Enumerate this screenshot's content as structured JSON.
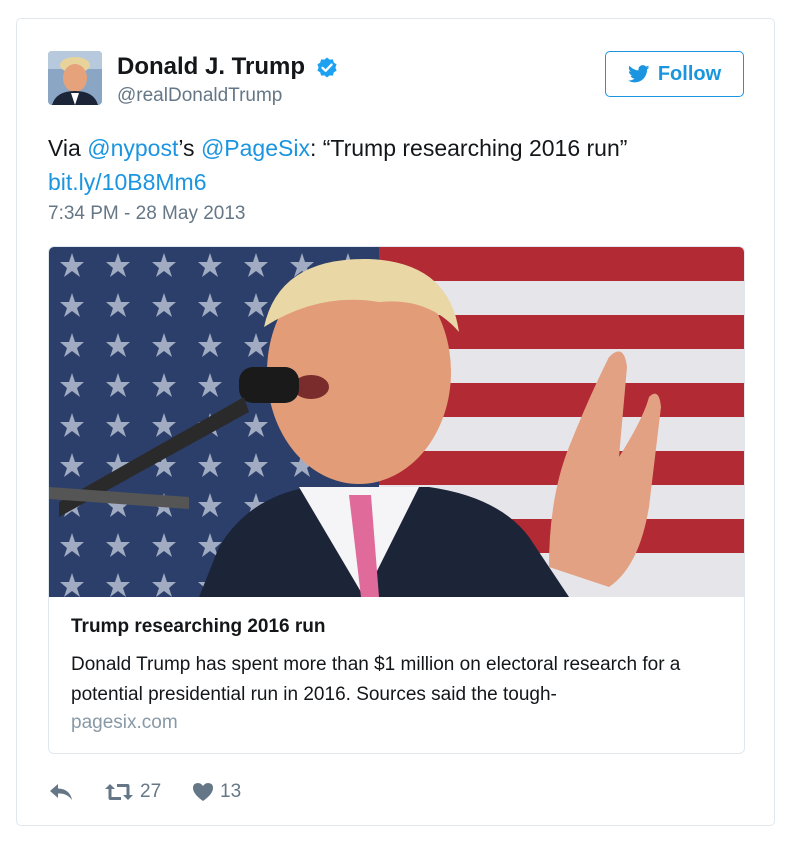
{
  "author": {
    "display_name": "Donald J. Trump",
    "screen_name": "@realDonaldTrump",
    "verified_icon": "verified-badge-icon"
  },
  "follow_button": {
    "label": "Follow",
    "icon": "twitter-bird-icon"
  },
  "tweet": {
    "prefix": "Via ",
    "mention_1": "@nypost",
    "mid": "’s ",
    "mention_2": "@PageSix",
    "suffix": ": “Trump researching 2016 run”",
    "link": "bit.ly/10B8Mm6",
    "timestamp": "7:34 PM - 28 May 2013"
  },
  "card": {
    "image": "photo-speaker-at-microphone-flag-background",
    "title": "Trump researching 2016 run",
    "description": "Donald Trump has spent more than $1 million on electoral research for a potential presidential run in 2016. Sources said the tough-",
    "domain": "pagesix.com"
  },
  "actions": {
    "reply_icon": "reply-icon",
    "retweet_icon": "retweet-icon",
    "retweet_count": "27",
    "like_icon": "heart-icon",
    "like_count": "13"
  },
  "colors": {
    "accent": "#1b95e0",
    "muted": "#657786",
    "border": "#e1e8ed",
    "text": "#14171a"
  }
}
